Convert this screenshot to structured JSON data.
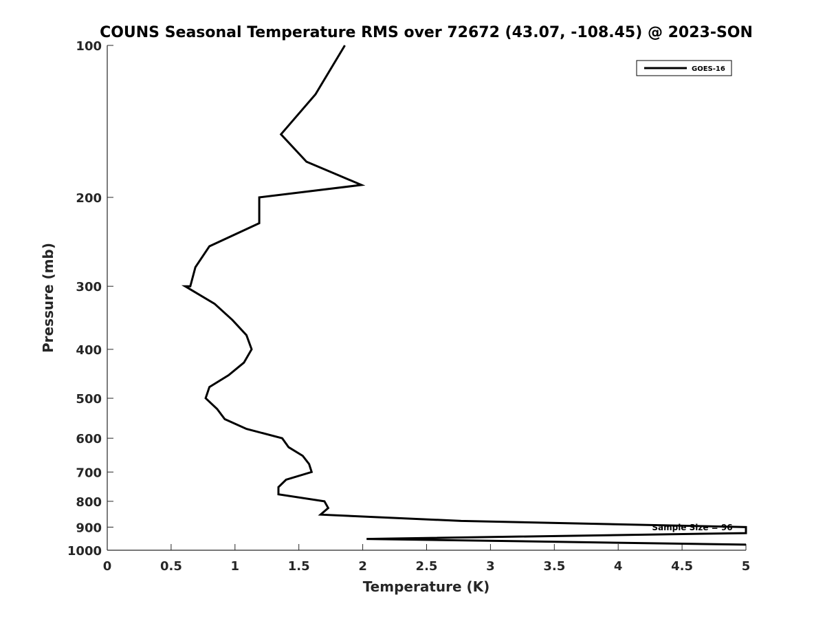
{
  "chart_data": {
    "type": "line",
    "title": "COUNS Seasonal Temperature RMS over 72672 (43.07, -108.45) @ 2023-SON",
    "xlabel": "Temperature (K)",
    "ylabel": "Pressure (mb)",
    "xlim": [
      0,
      5
    ],
    "ylim": [
      100,
      1000
    ],
    "y_scale": "log",
    "y_reversed": true,
    "x_ticks": [
      "0",
      "0.5",
      "1",
      "1.5",
      "2",
      "2.5",
      "3",
      "3.5",
      "4",
      "4.5",
      "5"
    ],
    "y_ticks": [
      "100",
      "200",
      "300",
      "400",
      "500",
      "600",
      "700",
      "800",
      "900",
      "1000"
    ],
    "grid": false,
    "legend_position": "top-right",
    "annotation": "Sample Size = 96",
    "series": [
      {
        "name": "GOES-16",
        "color": "#000000",
        "points": [
          [
            1.86,
            100
          ],
          [
            1.63,
            125
          ],
          [
            1.36,
            150
          ],
          [
            1.56,
            170
          ],
          [
            1.99,
            189
          ],
          [
            1.19,
            200
          ],
          [
            1.19,
            225
          ],
          [
            0.8,
            250
          ],
          [
            0.69,
            275
          ],
          [
            0.65,
            300
          ],
          [
            0.61,
            300
          ],
          [
            0.84,
            325
          ],
          [
            0.98,
            350
          ],
          [
            1.09,
            375
          ],
          [
            1.13,
            400
          ],
          [
            1.07,
            425
          ],
          [
            0.95,
            450
          ],
          [
            0.8,
            475
          ],
          [
            0.77,
            500
          ],
          [
            0.86,
            525
          ],
          [
            0.92,
            550
          ],
          [
            1.09,
            575
          ],
          [
            1.37,
            600
          ],
          [
            1.42,
            625
          ],
          [
            1.53,
            650
          ],
          [
            1.58,
            675
          ],
          [
            1.6,
            700
          ],
          [
            1.4,
            725
          ],
          [
            1.34,
            750
          ],
          [
            1.34,
            775
          ],
          [
            1.7,
            800
          ],
          [
            1.73,
            825
          ],
          [
            1.67,
            850
          ],
          [
            2.77,
            875
          ],
          [
            5.0,
            900
          ],
          [
            5.0,
            925
          ],
          [
            2.03,
            950
          ],
          [
            5.0,
            975
          ]
        ]
      }
    ]
  }
}
